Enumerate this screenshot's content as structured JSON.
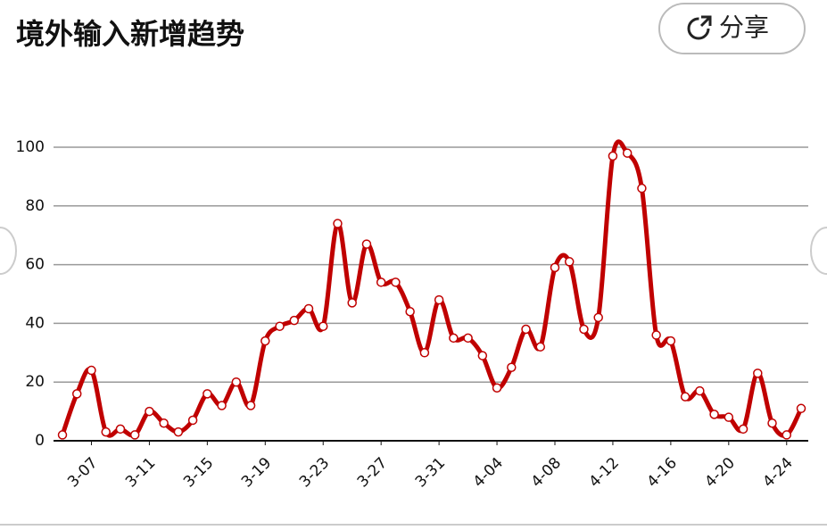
{
  "chart_data": {
    "type": "line",
    "title": "境外输入新增趋势",
    "share_button": "分享",
    "categories": [
      null,
      null,
      "3-07",
      null,
      null,
      null,
      "3-11",
      null,
      null,
      null,
      "3-15",
      null,
      null,
      null,
      "3-19",
      null,
      null,
      null,
      "3-23",
      null,
      null,
      null,
      "3-27",
      null,
      null,
      null,
      "3-31",
      null,
      null,
      null,
      "4-04",
      null,
      null,
      null,
      "4-08",
      null,
      null,
      null,
      "4-12",
      null,
      null,
      null,
      "4-16",
      null,
      null,
      null,
      "4-20",
      null,
      null,
      null,
      "4-24",
      null
    ],
    "series": [
      {
        "color": "#c00000",
        "values": [
          2,
          16,
          24,
          3,
          4,
          2,
          10,
          6,
          3,
          7,
          16,
          12,
          20,
          12,
          34,
          39,
          41,
          45,
          39,
          74,
          47,
          67,
          54,
          54,
          44,
          30,
          48,
          35,
          35,
          29,
          18,
          25,
          38,
          32,
          59,
          61,
          38,
          42,
          97,
          98,
          86,
          36,
          34,
          15,
          17,
          9,
          8,
          4,
          23,
          6,
          2,
          11
        ]
      }
    ],
    "ylim": [
      0,
      100
    ],
    "yticks": [
      0,
      20,
      40,
      60,
      80,
      100
    ],
    "grid": true
  }
}
